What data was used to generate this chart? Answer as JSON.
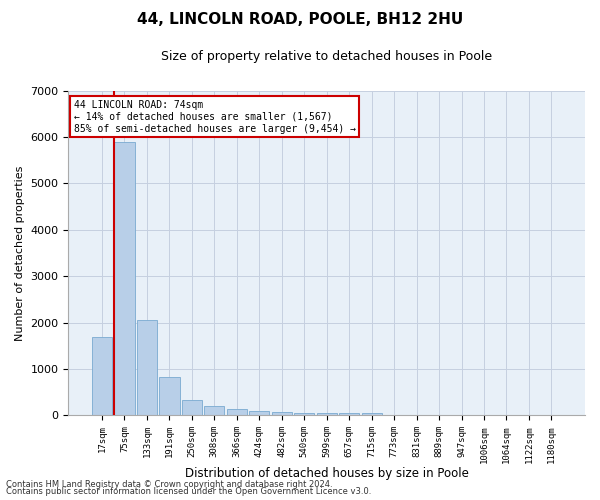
{
  "title_line1": "44, LINCOLN ROAD, POOLE, BH12 2HU",
  "title_line2": "Size of property relative to detached houses in Poole",
  "xlabel": "Distribution of detached houses by size in Poole",
  "ylabel": "Number of detached properties",
  "footnote1": "Contains HM Land Registry data © Crown copyright and database right 2024.",
  "footnote2": "Contains public sector information licensed under the Open Government Licence v3.0.",
  "bar_color": "#b8cfe8",
  "bar_edge_color": "#7aaad0",
  "highlight_line_color": "#cc0000",
  "annotation_box_color": "#cc0000",
  "background_color": "#dde8f5",
  "plot_bg_color": "#e8f0f8",
  "categories": [
    "17sqm",
    "75sqm",
    "133sqm",
    "191sqm",
    "250sqm",
    "308sqm",
    "366sqm",
    "424sqm",
    "482sqm",
    "540sqm",
    "599sqm",
    "657sqm",
    "715sqm",
    "773sqm",
    "831sqm",
    "889sqm",
    "947sqm",
    "1006sqm",
    "1064sqm",
    "1122sqm",
    "1180sqm"
  ],
  "values": [
    1700,
    5900,
    2050,
    820,
    340,
    200,
    140,
    95,
    70,
    55,
    55,
    50,
    50,
    0,
    0,
    0,
    0,
    0,
    0,
    0,
    0
  ],
  "ylim": [
    0,
    7000
  ],
  "yticks": [
    0,
    1000,
    2000,
    3000,
    4000,
    5000,
    6000,
    7000
  ],
  "highlight_index": 1,
  "annotation_line1": "44 LINCOLN ROAD: 74sqm",
  "annotation_line2": "← 14% of detached houses are smaller (1,567)",
  "annotation_line3": "85% of semi-detached houses are larger (9,454) →",
  "grid_color": "#c5cfe0"
}
